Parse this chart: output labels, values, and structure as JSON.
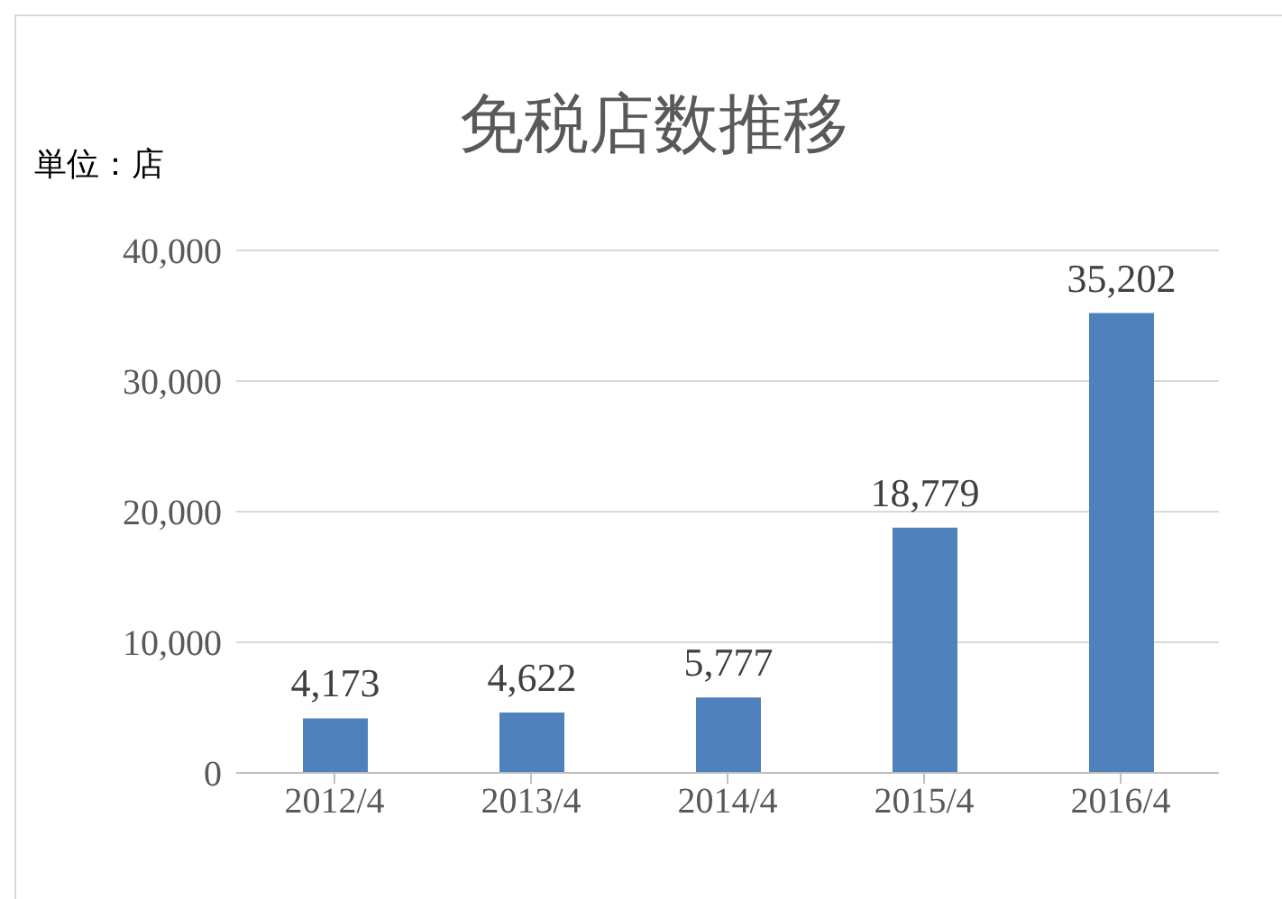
{
  "chart_data": {
    "type": "bar",
    "title": "免税店数推移",
    "ylabel": "単位：店",
    "categories": [
      "2012/4",
      "2013/4",
      "2014/4",
      "2015/4",
      "2016/4"
    ],
    "values": [
      4173,
      4622,
      5777,
      18779,
      35202
    ],
    "value_labels": [
      "4,173",
      "4,622",
      "5,777",
      "18,779",
      "35,202"
    ],
    "color": "#4f81bd",
    "ylim": [
      0,
      40000
    ],
    "yticks": [
      {
        "value": 0,
        "label": "0"
      },
      {
        "value": 10000,
        "label": "10,000"
      },
      {
        "value": 20000,
        "label": "20,000"
      },
      {
        "value": 30000,
        "label": "30,000"
      },
      {
        "value": 40000,
        "label": "40,000"
      }
    ],
    "grid": "y",
    "legend": false
  }
}
